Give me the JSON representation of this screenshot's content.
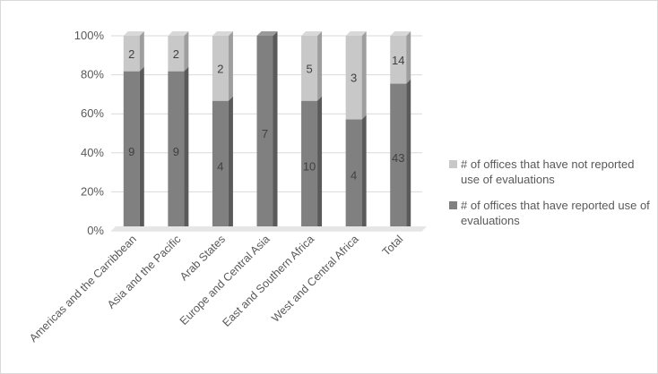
{
  "chart_data": {
    "type": "bar",
    "stacked": "percent",
    "categories": [
      "Americas and the Carribbean",
      "Asia and the Pacific",
      "Arab States",
      "Europe and Central Asia",
      "East and Southern Africa",
      "West and Central Africa",
      "Total"
    ],
    "series": [
      {
        "name": "# of offices that have reported use of evaluations",
        "values": [
          9,
          9,
          4,
          7,
          10,
          4,
          43
        ],
        "color": "#808080"
      },
      {
        "name": "# of offices that have not reported use of evaluations",
        "values": [
          2,
          2,
          2,
          0,
          5,
          3,
          14
        ],
        "color": "#c8c8c8"
      }
    ],
    "y_ticks": [
      "0%",
      "20%",
      "40%",
      "60%",
      "80%",
      "100%"
    ],
    "ylim": [
      0,
      100
    ],
    "grid": true,
    "legend_position": "right"
  }
}
